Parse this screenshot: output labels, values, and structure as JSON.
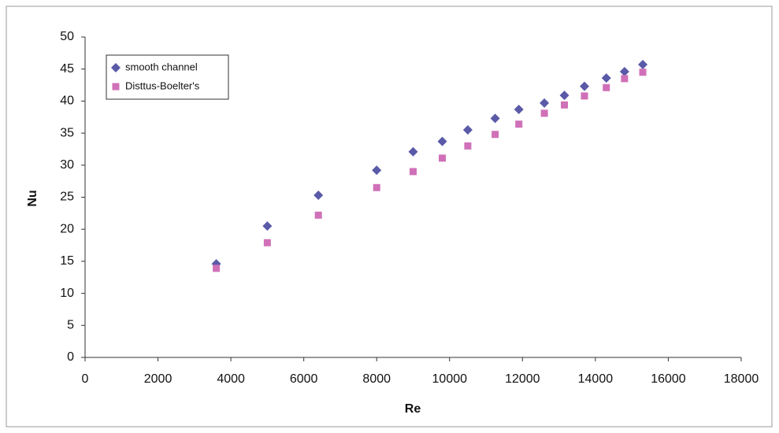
{
  "chart_data": {
    "type": "scatter",
    "x_label": "Re",
    "y_label": "Nu",
    "x": [
      3600,
      5000,
      6400,
      8000,
      9000,
      9800,
      10500,
      11250,
      11900,
      12600,
      13150,
      13700,
      14300,
      14800,
      15300
    ],
    "series": [
      {
        "name": "smooth channel",
        "color": "#5a5aa8",
        "marker": "diamond",
        "values": [
          14.6,
          20.5,
          25.3,
          29.2,
          32.1,
          33.7,
          35.5,
          37.3,
          38.7,
          39.7,
          40.9,
          42.3,
          43.6,
          44.6,
          45.7
        ]
      },
      {
        "name": "Disttus-Boelter's",
        "color": "#d070b8",
        "marker": "square",
        "values": [
          13.9,
          17.9,
          22.2,
          26.5,
          29.0,
          31.1,
          33.0,
          34.8,
          36.4,
          38.1,
          39.4,
          40.8,
          42.1,
          43.5,
          44.5
        ]
      }
    ],
    "xlim": [
      0,
      18000
    ],
    "xticks": [
      0,
      2000,
      4000,
      6000,
      8000,
      10000,
      12000,
      14000,
      16000,
      18000
    ],
    "ylim": [
      0,
      50
    ],
    "yticks": [
      0,
      5,
      10,
      15,
      20,
      25,
      30,
      35,
      40,
      45,
      50
    ],
    "grid": false,
    "legend": "upper left"
  }
}
